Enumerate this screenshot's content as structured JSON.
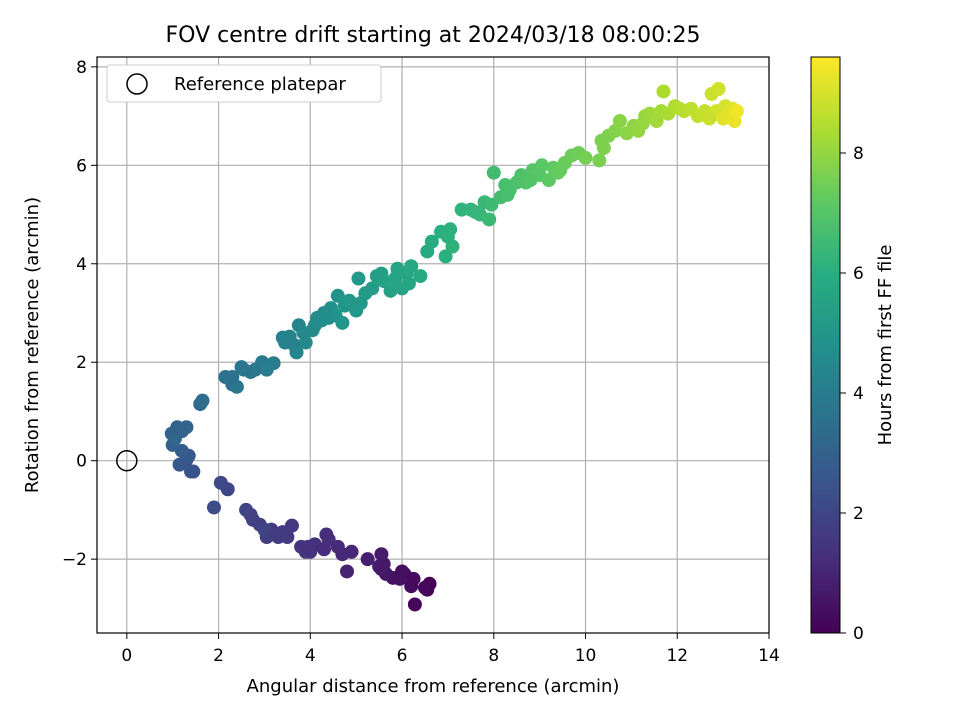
{
  "chart_data": {
    "type": "scatter",
    "title": "FOV centre drift starting at 2024/03/18 08:00:25",
    "xlabel": "Angular distance from reference (arcmin)",
    "ylabel": "Rotation from reference (arcmin)",
    "xlim": [
      -0.65,
      14
    ],
    "ylim": [
      -3.5,
      8.2
    ],
    "xticks": [
      0,
      2,
      4,
      6,
      8,
      10,
      12,
      14
    ],
    "yticks": [
      -2,
      0,
      2,
      4,
      6,
      8
    ],
    "grid": true,
    "legend": {
      "placement": "top-left",
      "entries": [
        "Reference platepar"
      ]
    },
    "colorbar": {
      "label": "Hours from first FF file",
      "range": [
        0,
        9.6
      ],
      "ticks": [
        0,
        2,
        4,
        6,
        8
      ],
      "colormap": "viridis"
    },
    "reference_point": {
      "name": "Reference platepar",
      "x": 0,
      "y": 0
    },
    "series": [
      {
        "points": [
          [
            6.6,
            -2.5,
            0.05
          ],
          [
            6.55,
            -2.62,
            0.1
          ],
          [
            6.28,
            -2.92,
            0.15
          ],
          [
            6.5,
            -2.58,
            0.2
          ],
          [
            6.2,
            -2.55,
            0.3
          ],
          [
            6.05,
            -2.3,
            0.35
          ],
          [
            5.95,
            -2.4,
            0.4
          ],
          [
            5.8,
            -2.38,
            0.45
          ],
          [
            5.65,
            -2.3,
            0.55
          ],
          [
            5.6,
            -2.1,
            0.6
          ],
          [
            5.55,
            -1.9,
            0.7
          ],
          [
            5.5,
            -2.15,
            0.75
          ],
          [
            5.25,
            -2.0,
            0.85
          ],
          [
            4.8,
            -2.25,
            0.95
          ],
          [
            4.9,
            -1.85,
            1.05
          ],
          [
            4.7,
            -1.9,
            1.1
          ],
          [
            4.6,
            -1.75,
            1.15
          ],
          [
            4.3,
            -1.8,
            1.2
          ],
          [
            4.35,
            -1.5,
            1.25
          ],
          [
            4.1,
            -1.7,
            1.3
          ],
          [
            4.0,
            -1.85,
            1.35
          ],
          [
            3.9,
            -1.85,
            1.4
          ],
          [
            3.8,
            -1.75,
            1.45
          ],
          [
            3.5,
            -1.55,
            1.55
          ],
          [
            3.6,
            -1.32,
            1.6
          ],
          [
            3.3,
            -1.55,
            1.65
          ],
          [
            3.15,
            -1.4,
            1.7
          ],
          [
            3.05,
            -1.55,
            1.75
          ],
          [
            2.9,
            -1.3,
            1.8
          ],
          [
            2.7,
            -1.1,
            1.85
          ],
          [
            2.6,
            -1.0,
            1.9
          ],
          [
            3.0,
            -1.4,
            1.95
          ],
          [
            2.2,
            -0.58,
            2.0
          ],
          [
            2.05,
            -0.45,
            2.1
          ],
          [
            1.9,
            -0.95,
            2.2
          ],
          [
            1.45,
            -0.22,
            2.4
          ],
          [
            1.3,
            0.02,
            2.5
          ],
          [
            1.15,
            -0.08,
            2.6
          ],
          [
            1.35,
            0.1,
            2.7
          ],
          [
            1.2,
            0.2,
            2.8
          ],
          [
            1.0,
            0.32,
            2.9
          ],
          [
            0.98,
            0.55,
            3.0
          ],
          [
            1.1,
            0.68,
            3.05
          ],
          [
            1.3,
            0.68,
            3.1
          ],
          [
            1.05,
            0.45,
            3.2
          ],
          [
            1.6,
            1.15,
            3.3
          ],
          [
            1.65,
            1.22,
            3.4
          ],
          [
            2.3,
            1.55,
            3.5
          ],
          [
            2.15,
            1.7,
            3.6
          ],
          [
            2.5,
            1.9,
            3.7
          ],
          [
            2.4,
            1.5,
            3.8
          ],
          [
            2.7,
            1.8,
            3.85
          ],
          [
            2.95,
            2.0,
            3.95
          ],
          [
            3.2,
            1.98,
            4.0
          ],
          [
            3.05,
            1.85,
            4.05
          ],
          [
            3.4,
            2.5,
            4.15
          ],
          [
            3.55,
            2.52,
            4.2
          ],
          [
            3.65,
            2.35,
            4.25
          ],
          [
            3.75,
            2.75,
            4.35
          ],
          [
            3.7,
            2.2,
            4.4
          ],
          [
            3.9,
            2.4,
            4.45
          ],
          [
            4.05,
            2.65,
            4.55
          ],
          [
            4.15,
            2.9,
            4.6
          ],
          [
            4.25,
            2.85,
            4.65
          ],
          [
            4.3,
            3.0,
            4.7
          ],
          [
            4.45,
            3.1,
            4.75
          ],
          [
            4.55,
            2.95,
            4.85
          ],
          [
            4.6,
            3.35,
            4.9
          ],
          [
            4.75,
            3.15,
            4.95
          ],
          [
            4.7,
            2.8,
            5.0
          ],
          [
            4.85,
            3.25,
            5.05
          ],
          [
            5.0,
            3.05,
            5.1
          ],
          [
            5.05,
            3.7,
            5.15
          ],
          [
            5.2,
            3.4,
            5.2
          ],
          [
            5.35,
            3.5,
            5.25
          ],
          [
            5.45,
            3.75,
            5.35
          ],
          [
            5.55,
            3.8,
            5.4
          ],
          [
            5.6,
            3.65,
            5.45
          ],
          [
            5.75,
            3.45,
            5.5
          ],
          [
            5.9,
            3.9,
            5.55
          ],
          [
            6.0,
            3.5,
            5.6
          ],
          [
            6.1,
            3.8,
            5.65
          ],
          [
            6.15,
            3.6,
            5.7
          ],
          [
            6.2,
            3.95,
            5.75
          ],
          [
            6.55,
            4.25,
            5.85
          ],
          [
            6.65,
            4.45,
            5.9
          ],
          [
            6.85,
            4.65,
            6.0
          ],
          [
            6.95,
            4.15,
            6.05
          ],
          [
            7.05,
            4.7,
            6.1
          ],
          [
            7.1,
            4.35,
            6.15
          ],
          [
            7.3,
            5.1,
            6.2
          ],
          [
            7.5,
            5.1,
            6.25
          ],
          [
            7.7,
            5.0,
            6.35
          ],
          [
            7.8,
            5.25,
            6.4
          ],
          [
            7.9,
            4.9,
            6.45
          ],
          [
            7.95,
            5.2,
            6.5
          ],
          [
            8.0,
            5.85,
            6.55
          ],
          [
            8.15,
            5.35,
            6.6
          ],
          [
            8.25,
            5.6,
            6.7
          ],
          [
            8.35,
            5.5,
            6.75
          ],
          [
            8.5,
            5.65,
            6.8
          ],
          [
            8.6,
            5.8,
            6.85
          ],
          [
            8.7,
            5.65,
            6.9
          ],
          [
            8.85,
            5.9,
            7.0
          ],
          [
            9.0,
            5.8,
            7.05
          ],
          [
            9.05,
            6.0,
            7.1
          ],
          [
            9.2,
            5.7,
            7.15
          ],
          [
            9.3,
            5.95,
            7.2
          ],
          [
            9.4,
            5.85,
            7.3
          ],
          [
            9.55,
            6.05,
            7.35
          ],
          [
            9.7,
            6.2,
            7.4
          ],
          [
            9.85,
            6.25,
            7.45
          ],
          [
            10.0,
            6.15,
            7.55
          ],
          [
            10.3,
            6.1,
            7.6
          ],
          [
            10.35,
            6.5,
            7.65
          ],
          [
            10.5,
            6.6,
            7.7
          ],
          [
            10.65,
            6.7,
            7.75
          ],
          [
            10.75,
            6.9,
            7.85
          ],
          [
            10.9,
            6.65,
            7.9
          ],
          [
            11.05,
            6.8,
            7.95
          ],
          [
            11.15,
            6.7,
            8.0
          ],
          [
            11.3,
            7.0,
            8.1
          ],
          [
            11.4,
            7.05,
            8.15
          ],
          [
            11.55,
            6.9,
            8.2
          ],
          [
            11.65,
            7.1,
            8.25
          ],
          [
            11.8,
            7.05,
            8.35
          ],
          [
            11.7,
            7.5,
            8.4
          ],
          [
            11.95,
            7.2,
            8.45
          ],
          [
            12.05,
            7.15,
            8.5
          ],
          [
            12.15,
            7.1,
            8.55
          ],
          [
            12.3,
            7.15,
            8.65
          ],
          [
            12.45,
            7.0,
            8.7
          ],
          [
            12.6,
            7.1,
            8.75
          ],
          [
            12.75,
            7.45,
            8.85
          ],
          [
            12.9,
            7.55,
            8.9
          ],
          [
            12.85,
            7.1,
            8.95
          ],
          [
            13.05,
            7.2,
            9.0
          ],
          [
            13.1,
            7.05,
            9.1
          ],
          [
            13.2,
            7.15,
            9.15
          ],
          [
            13.0,
            6.95,
            9.2
          ],
          [
            13.25,
            6.9,
            9.3
          ],
          [
            13.3,
            7.1,
            9.4
          ],
          [
            12.7,
            6.95,
            8.8
          ],
          [
            11.25,
            6.85,
            8.05
          ],
          [
            10.4,
            6.35,
            7.7
          ],
          [
            9.45,
            5.9,
            7.3
          ],
          [
            8.8,
            5.7,
            6.95
          ],
          [
            8.3,
            5.4,
            6.7
          ],
          [
            7.6,
            5.05,
            6.3
          ],
          [
            7.0,
            4.55,
            6.1
          ],
          [
            6.4,
            3.75,
            5.8
          ],
          [
            5.85,
            3.7,
            5.55
          ],
          [
            5.1,
            3.2,
            5.15
          ],
          [
            4.95,
            3.15,
            5.1
          ],
          [
            4.4,
            2.9,
            4.75
          ],
          [
            4.1,
            2.75,
            4.55
          ],
          [
            3.85,
            2.6,
            4.45
          ],
          [
            3.45,
            2.4,
            4.2
          ],
          [
            2.8,
            1.85,
            3.8
          ],
          [
            2.55,
            1.85,
            3.7
          ],
          [
            2.3,
            1.7,
            3.6
          ],
          [
            1.2,
            0.6,
            3.05
          ],
          [
            1.4,
            -0.22,
            2.45
          ],
          [
            2.75,
            -1.2,
            1.85
          ],
          [
            3.4,
            -1.45,
            1.6
          ],
          [
            3.95,
            -1.75,
            1.4
          ],
          [
            4.4,
            -1.6,
            1.25
          ],
          [
            5.55,
            -2.2,
            0.65
          ],
          [
            6.0,
            -2.25,
            0.35
          ],
          [
            6.25,
            -2.4,
            0.25
          ]
        ]
      }
    ]
  }
}
